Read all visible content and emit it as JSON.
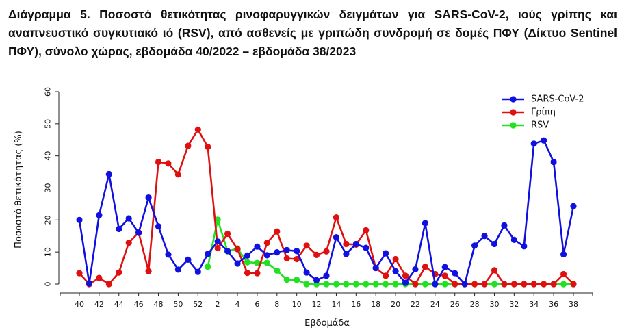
{
  "caption": "Διάγραμμα 5. Ποσοστό θετικότητας ρινοφαρυγγικών δειγμάτων για SARS-CoV-2, ιούς γρίπης και αναπνευστικό συγκυτιακό ιό (RSV), από ασθενείς με γριπώδη συνδρομή σε δομές ΠΦΥ (Δίκτυο Sentinel ΠΦΥ), σύνολο χώρας, εβδομάδα 40/2022 – εβδομάδα 38/2023",
  "chart_data": {
    "type": "line",
    "title": "",
    "xlabel": "Εβδομάδα",
    "ylabel": "Ποσοστό θετικότητας (%)",
    "ylim": [
      0,
      60
    ],
    "yticks": [
      0,
      10,
      20,
      30,
      40,
      50,
      60
    ],
    "grid": false,
    "legend_position": "top-right",
    "categories": [
      "40",
      "41",
      "42",
      "43",
      "44",
      "45",
      "46",
      "47",
      "48",
      "49",
      "50",
      "51",
      "52",
      "1",
      "2",
      "3",
      "4",
      "5",
      "6",
      "7",
      "8",
      "9",
      "10",
      "11",
      "12",
      "13",
      "14",
      "15",
      "16",
      "17",
      "18",
      "19",
      "20",
      "21",
      "22",
      "23",
      "24",
      "25",
      "26",
      "27",
      "28",
      "29",
      "30",
      "31",
      "32",
      "33",
      "34",
      "35",
      "36",
      "37",
      "38"
    ],
    "tick_labels": [
      "40",
      "42",
      "44",
      "46",
      "48",
      "50",
      "52",
      "2",
      "4",
      "6",
      "8",
      "10",
      "12",
      "14",
      "16",
      "18",
      "20",
      "22",
      "24",
      "26",
      "28",
      "30",
      "32",
      "34",
      "36",
      "38"
    ],
    "series": [
      {
        "name": "SARS-CoV-2",
        "color": "#1010e0",
        "values": [
          20,
          0.2,
          21.5,
          34.3,
          17.2,
          20.5,
          16,
          27,
          18,
          9.2,
          4.5,
          7.6,
          3.8,
          9.4,
          13.3,
          10.3,
          6.4,
          8.9,
          11.7,
          9,
          9.9,
          10.6,
          10.3,
          3.6,
          1.2,
          2.6,
          14.6,
          9.4,
          12.5,
          11.3,
          5,
          9.6,
          4,
          0.4,
          4.6,
          19,
          0,
          5.3,
          3.4,
          0,
          12,
          15,
          12.5,
          18.3,
          13.8,
          11.8,
          43.8,
          44.8,
          38.1,
          9.3,
          24.3
        ]
      },
      {
        "name": "Γρίπη",
        "color": "#e01010",
        "values": [
          3.4,
          0,
          1.9,
          0,
          3.6,
          12.9,
          16.1,
          4,
          38.1,
          37.6,
          34.2,
          43.1,
          48.2,
          42.8,
          11.2,
          15.7,
          10.9,
          3.5,
          3.4,
          12.9,
          16.4,
          8,
          7.8,
          12,
          9.1,
          10.2,
          20.8,
          12.5,
          12.3,
          16.8,
          5,
          2.6,
          7.8,
          2.6,
          0,
          5.4,
          3.1,
          2.6,
          0,
          0,
          0,
          0,
          4.3,
          0,
          0,
          0,
          0,
          0,
          0,
          3.1,
          0
        ]
      },
      {
        "name": "RSV",
        "color": "#22e022",
        "values": [
          null,
          null,
          null,
          null,
          null,
          null,
          null,
          null,
          null,
          null,
          null,
          null,
          null,
          5.4,
          20.1,
          10.2,
          11.1,
          6.8,
          6.6,
          6.6,
          4.2,
          1.4,
          1.3,
          0,
          0,
          0,
          0,
          0,
          0,
          0,
          0,
          0,
          0,
          0,
          0,
          0,
          0,
          0,
          0,
          0,
          0,
          0,
          0,
          0,
          0,
          0,
          0,
          0,
          0,
          0,
          0
        ]
      }
    ]
  }
}
